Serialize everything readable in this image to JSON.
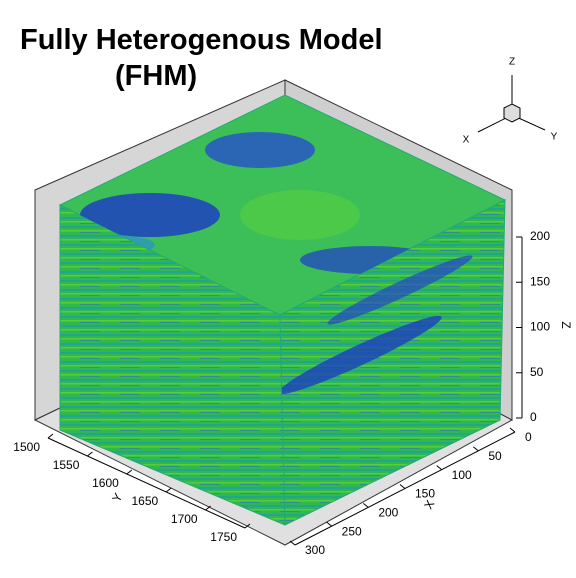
{
  "title": [
    "Fully Heterogenous Model",
    "(FHM)"
  ],
  "triad": {
    "z": "Z",
    "x": "X",
    "y": "Y"
  },
  "axes": {
    "z": {
      "label": "Z",
      "ticks": [
        0,
        50,
        100,
        150,
        200
      ]
    },
    "x": {
      "label": "X",
      "ticks": [
        0,
        50,
        100,
        150,
        200,
        250,
        300
      ]
    },
    "y": {
      "label": "Y",
      "ticks": [
        1500,
        1550,
        1600,
        1650,
        1700,
        1750
      ]
    }
  }
}
